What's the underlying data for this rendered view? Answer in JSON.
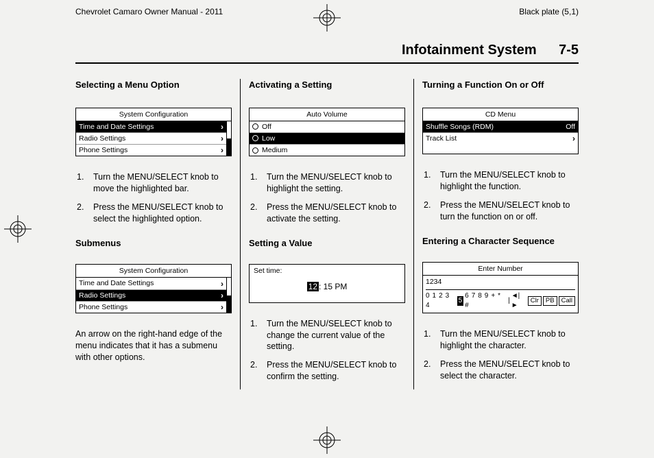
{
  "header": {
    "left": "Chevrolet Camaro Owner Manual - 2011",
    "right": "Black plate (5,1)"
  },
  "page_title": "Infotainment System",
  "page_number": "7-5",
  "col1": {
    "heading1": "Selecting a Menu Option",
    "screen1": {
      "title": "System Configuration",
      "rows": [
        {
          "label": "Time and Date Settings",
          "highlight": true,
          "arrow": true
        },
        {
          "label": "Radio Settings",
          "highlight": false,
          "arrow": true
        },
        {
          "label": "Phone Settings",
          "highlight": false,
          "arrow": true
        }
      ]
    },
    "steps1": [
      "Turn the MENU/SELECT knob to move the highlighted bar.",
      "Press the MENU/SELECT knob to select the highlighted option."
    ],
    "heading2": "Submenus",
    "screen2": {
      "title": "System Configuration",
      "rows": [
        {
          "label": "Time and Date Settings",
          "highlight": false,
          "arrow": true
        },
        {
          "label": "Radio Settings",
          "highlight": true,
          "arrow": true
        },
        {
          "label": "Phone Settings",
          "highlight": false,
          "arrow": true
        }
      ]
    },
    "para": "An arrow on the right-hand edge of the menu indicates that it has a submenu with other options."
  },
  "col2": {
    "heading1": "Activating a Setting",
    "screen1": {
      "title": "Auto Volume",
      "rows": [
        {
          "label": "Off",
          "selected": false
        },
        {
          "label": "Low",
          "selected": true,
          "highlight": true
        },
        {
          "label": "Medium",
          "selected": false
        }
      ]
    },
    "steps1": [
      "Turn the MENU/SELECT knob to highlight the setting.",
      "Press the MENU/SELECT knob to activate the setting."
    ],
    "heading2": "Setting a Value",
    "screen2": {
      "label": "Set time:",
      "hl": "12",
      "rest": ": 15 PM"
    },
    "steps2": [
      "Turn the MENU/SELECT knob to change the current value of the setting.",
      "Press the MENU/SELECT knob to confirm the setting."
    ]
  },
  "col3": {
    "heading1": "Turning a Function On or Off",
    "screen1": {
      "title": "CD Menu",
      "rows": [
        {
          "label": "Shuffle Songs (RDM)",
          "highlight": true,
          "right": "Off"
        },
        {
          "label": "Track List",
          "highlight": false,
          "arrow": true
        }
      ]
    },
    "steps1": [
      "Turn the MENU/SELECT knob to highlight the function.",
      "Press the MENU/SELECT knob to turn the function on or off."
    ],
    "heading2": "Entering a Character Sequence",
    "screen2": {
      "title": "Enter Number",
      "entry": "1234",
      "keys_pre": "0 1 2 3 4",
      "keys_hl": "5",
      "keys_post": "6 7 8 9 + * #",
      "btn1": "Clr",
      "btn2": "PB",
      "btn3": "Call"
    },
    "steps2": [
      "Turn the MENU/SELECT knob to highlight the character.",
      "Press the MENU/SELECT knob to select the character."
    ]
  }
}
